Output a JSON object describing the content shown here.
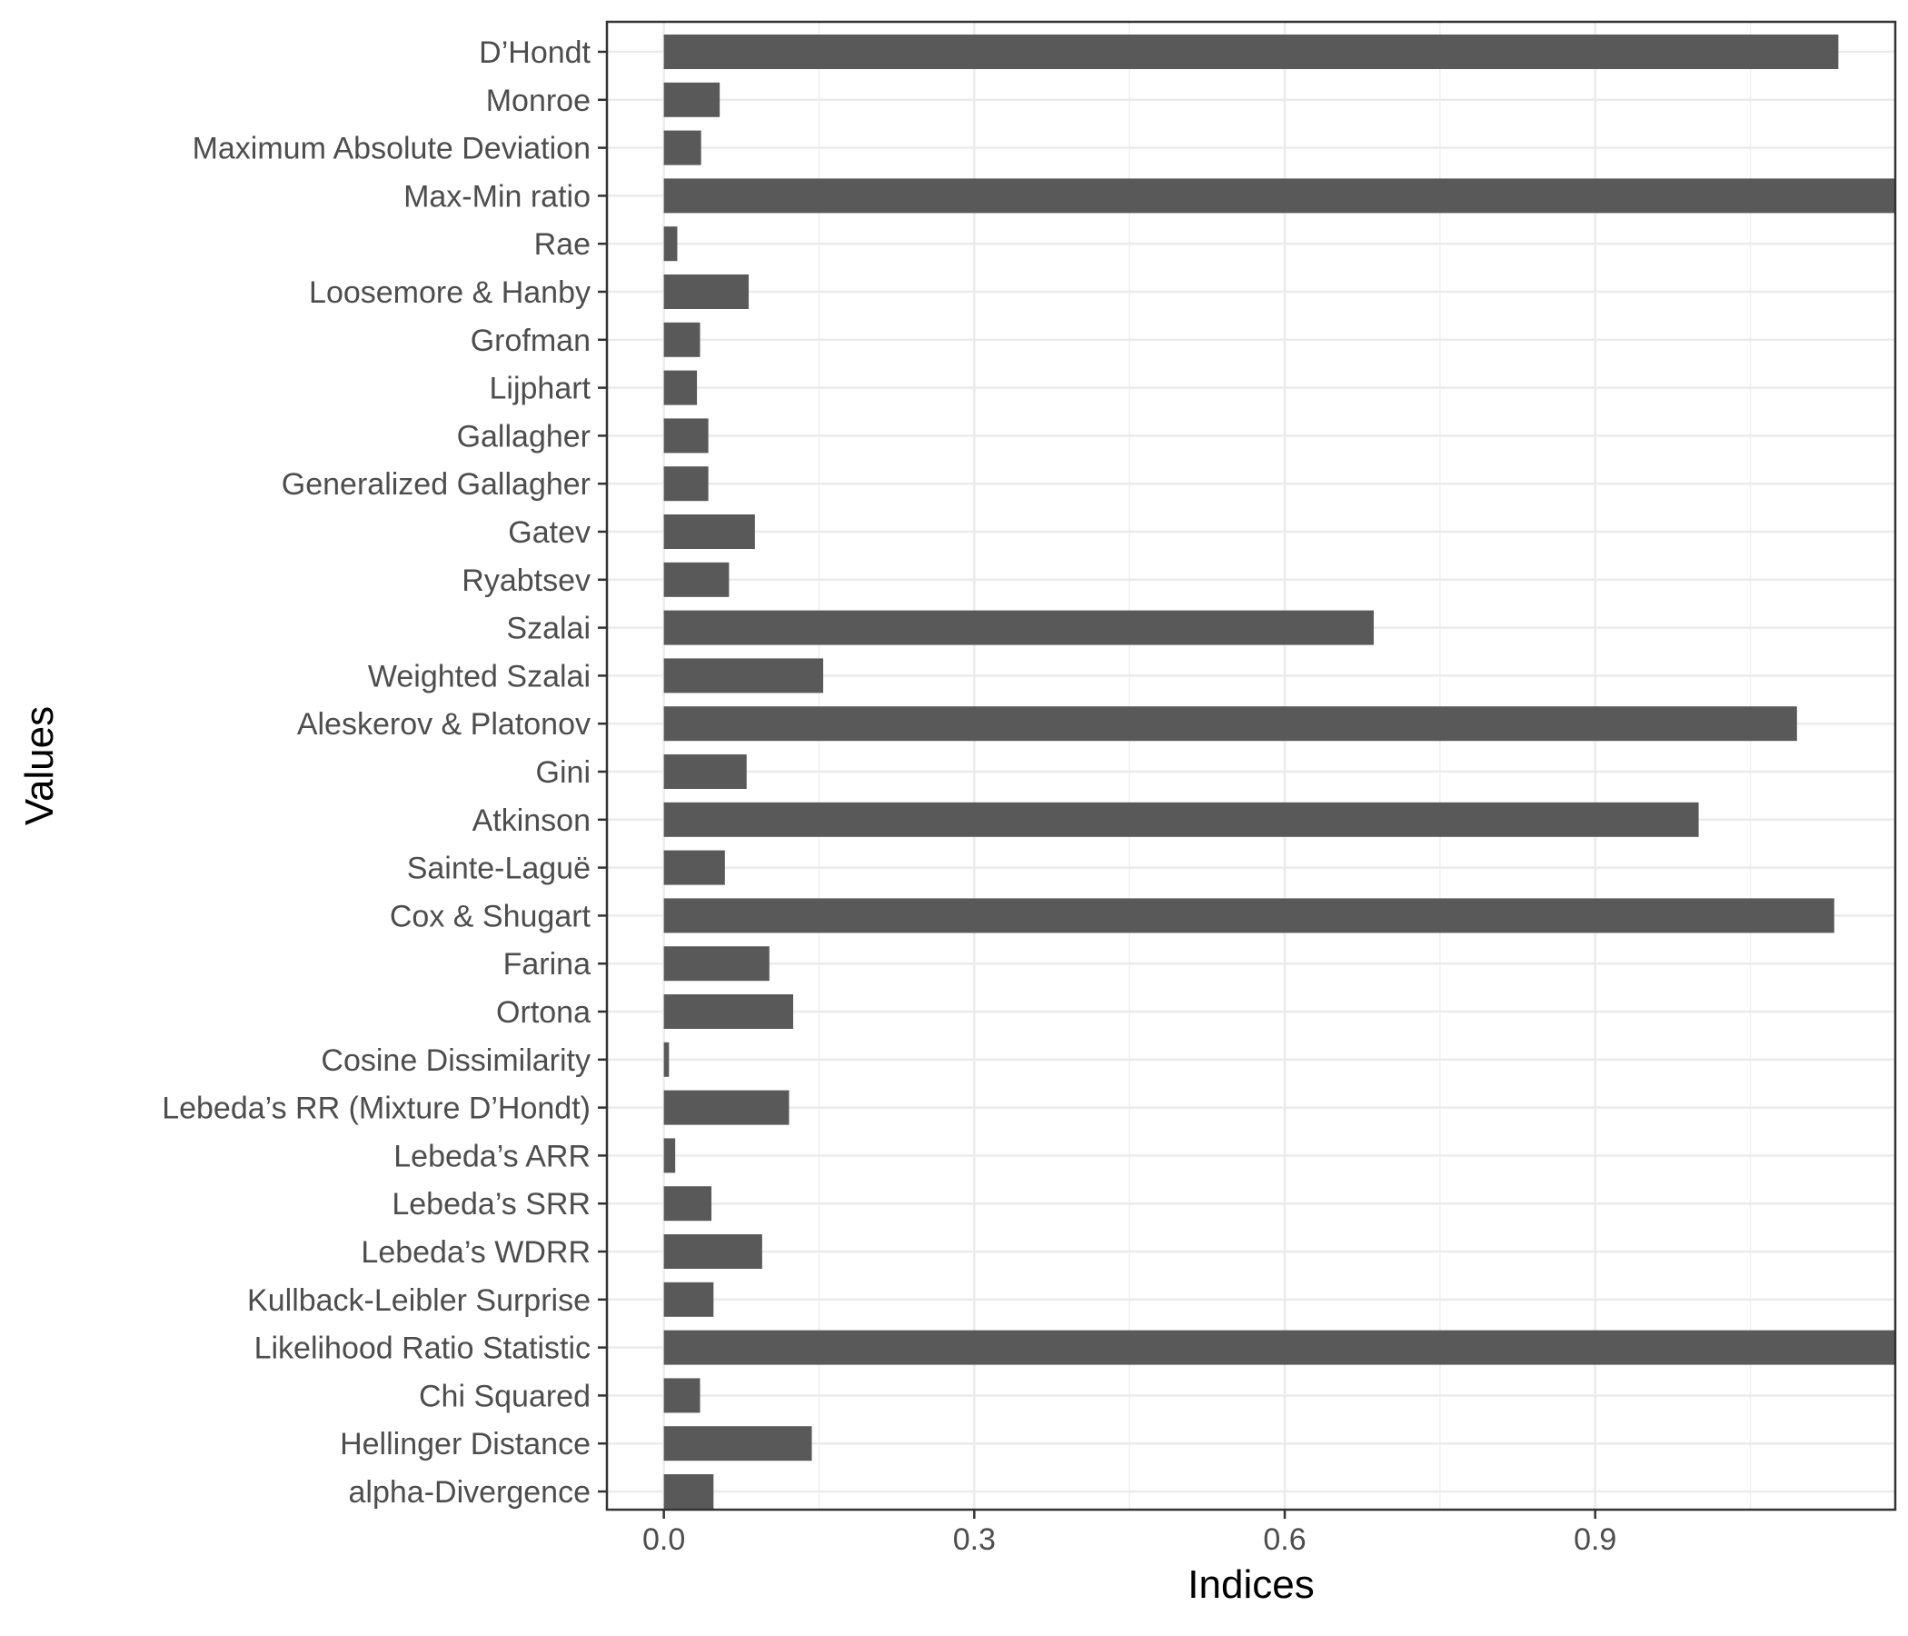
{
  "chart_data": {
    "type": "bar",
    "orientation": "horizontal",
    "xlabel": "Indices",
    "ylabel": "Values",
    "xlim": [
      -0.055,
      1.19
    ],
    "xticks": [
      0.0,
      0.3,
      0.6,
      0.9
    ],
    "xtick_labels": [
      "0.0",
      "0.3",
      "0.6",
      "0.9"
    ],
    "grid": true,
    "bar_color": "#595959",
    "categories": [
      "D’Hondt",
      "Monroe",
      "Maximum Absolute Deviation",
      "Max-Min ratio",
      "Rae",
      "Loosemore & Hanby",
      "Grofman",
      "Lijphart",
      "Gallagher",
      "Generalized Gallagher",
      "Gatev",
      "Ryabtsev",
      "Szalai",
      "Weighted Szalai",
      "Aleskerov & Platonov",
      "Gini",
      "Atkinson",
      "Sainte-Laguë",
      "Cox & Shugart",
      "Farina",
      "Ortona",
      "Cosine Dissimilarity",
      "Lebeda’s RR (Mixture D’Hondt)",
      "Lebeda’s ARR",
      "Lebeda’s SRR",
      "Lebeda’s WDRR",
      "Kullback-Leibler Surprise",
      "Likelihood Ratio Statistic",
      "Chi Squared",
      "Hellinger Distance",
      "alpha-Divergence"
    ],
    "values": [
      1.135,
      0.054,
      0.036,
      1.19,
      0.013,
      0.082,
      0.035,
      0.032,
      0.043,
      0.043,
      0.088,
      0.063,
      0.686,
      0.154,
      1.095,
      0.08,
      1.0,
      0.059,
      1.131,
      0.102,
      0.125,
      0.005,
      0.121,
      0.011,
      0.046,
      0.095,
      0.048,
      1.19,
      0.035,
      0.143,
      0.048
    ]
  }
}
